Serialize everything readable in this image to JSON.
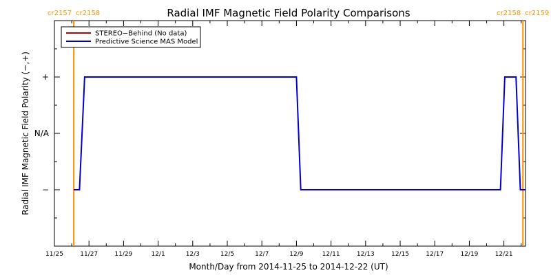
{
  "chart_data": {
    "type": "line",
    "title": "Radial IMF Magnetic Field Polarity Comparisons",
    "xlabel": "Month/Day from 2014-11-25 to 2014-12-22 (UT)",
    "ylabel": "Radial IMF Magnetic Field Polarity (−,+)",
    "x_range_days": [
      0,
      27.25
    ],
    "y_range": [
      -2,
      2
    ],
    "x_tick_labels": [
      {
        "day": 0,
        "label": "11/25"
      },
      {
        "day": 2,
        "label": "11/27"
      },
      {
        "day": 4,
        "label": "11/29"
      },
      {
        "day": 6,
        "label": "12/1"
      },
      {
        "day": 8,
        "label": "12/3"
      },
      {
        "day": 10,
        "label": "12/5"
      },
      {
        "day": 12,
        "label": "12/7"
      },
      {
        "day": 14,
        "label": "12/9"
      },
      {
        "day": 16,
        "label": "12/11"
      },
      {
        "day": 18,
        "label": "12/13"
      },
      {
        "day": 20,
        "label": "12/15"
      },
      {
        "day": 22,
        "label": "12/17"
      },
      {
        "day": 24,
        "label": "12/19"
      },
      {
        "day": 26,
        "label": "12/21"
      }
    ],
    "y_tick_labels": [
      {
        "value": 1,
        "label": "+"
      },
      {
        "value": 0,
        "label": "N/A"
      },
      {
        "value": -1,
        "label": "−"
      }
    ],
    "carrington_markers": [
      {
        "day": 1.12,
        "label_left": "cr2157",
        "label_right": "cr2158",
        "side": "left"
      },
      {
        "day": 27.1,
        "label_left": "cr2158",
        "label_right": "cr2159",
        "side": "right"
      }
    ],
    "legend": {
      "placement": "top-left",
      "entries": [
        {
          "name": "STEREO−Behind (No data)",
          "color": "#c00000"
        },
        {
          "name": "Predictive Science MAS Model",
          "color": "#0000cc"
        }
      ]
    },
    "series": [
      {
        "name": "Predictive Science MAS Model",
        "color": "#0000cc",
        "x": [
          1.12,
          1.45,
          1.75,
          14.0,
          14.25,
          25.8,
          26.05,
          26.7,
          26.95,
          27.25
        ],
        "y": [
          -1,
          -1,
          1,
          1,
          -1,
          -1,
          1,
          1,
          -1,
          -1
        ]
      }
    ],
    "colors": {
      "marker": "#ff8c00",
      "axes": "#000000"
    }
  }
}
